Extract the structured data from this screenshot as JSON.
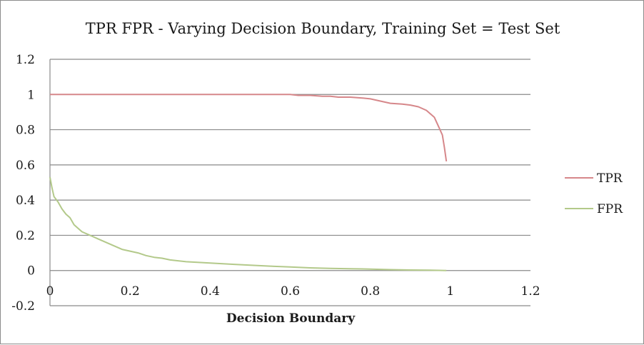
{
  "chart_data": {
    "type": "line",
    "title": "TPR FPR - Varying Decision Boundary,  Training Set = Test Set",
    "xlabel": "Decision Boundary",
    "ylabel": "",
    "xlim": [
      0,
      1.2
    ],
    "ylim": [
      -0.2,
      1.2
    ],
    "x_ticks": [
      "0",
      "0.2",
      "0.4",
      "0.6",
      "0.8",
      "1",
      "1.2"
    ],
    "y_ticks": [
      "1.2",
      "1",
      "0.8",
      "0.6",
      "0.4",
      "0.2",
      "0",
      "-0.2"
    ],
    "grid": "horizontal",
    "legend_position": "right",
    "series": [
      {
        "name": "TPR",
        "color": "#d6878a",
        "points": [
          [
            0,
            1
          ],
          [
            0.1,
            1
          ],
          [
            0.2,
            1
          ],
          [
            0.3,
            1
          ],
          [
            0.4,
            1
          ],
          [
            0.5,
            1
          ],
          [
            0.6,
            1
          ],
          [
            0.62,
            0.995
          ],
          [
            0.65,
            0.995
          ],
          [
            0.68,
            0.99
          ],
          [
            0.7,
            0.99
          ],
          [
            0.72,
            0.985
          ],
          [
            0.75,
            0.985
          ],
          [
            0.78,
            0.98
          ],
          [
            0.8,
            0.975
          ],
          [
            0.82,
            0.965
          ],
          [
            0.83,
            0.96
          ],
          [
            0.85,
            0.95
          ],
          [
            0.88,
            0.945
          ],
          [
            0.9,
            0.94
          ],
          [
            0.92,
            0.93
          ],
          [
            0.93,
            0.92
          ],
          [
            0.94,
            0.91
          ],
          [
            0.95,
            0.89
          ],
          [
            0.96,
            0.87
          ],
          [
            0.97,
            0.82
          ],
          [
            0.98,
            0.77
          ],
          [
            0.985,
            0.7
          ],
          [
            0.99,
            0.62
          ]
        ]
      },
      {
        "name": "FPR",
        "color": "#b3c98a",
        "points": [
          [
            0,
            0.53
          ],
          [
            0.005,
            0.47
          ],
          [
            0.01,
            0.42
          ],
          [
            0.02,
            0.39
          ],
          [
            0.03,
            0.35
          ],
          [
            0.04,
            0.32
          ],
          [
            0.05,
            0.3
          ],
          [
            0.06,
            0.26
          ],
          [
            0.07,
            0.24
          ],
          [
            0.08,
            0.22
          ],
          [
            0.1,
            0.2
          ],
          [
            0.12,
            0.18
          ],
          [
            0.14,
            0.16
          ],
          [
            0.16,
            0.14
          ],
          [
            0.18,
            0.12
          ],
          [
            0.2,
            0.11
          ],
          [
            0.22,
            0.1
          ],
          [
            0.24,
            0.085
          ],
          [
            0.26,
            0.075
          ],
          [
            0.28,
            0.07
          ],
          [
            0.3,
            0.06
          ],
          [
            0.34,
            0.05
          ],
          [
            0.38,
            0.045
          ],
          [
            0.42,
            0.04
          ],
          [
            0.46,
            0.035
          ],
          [
            0.5,
            0.03
          ],
          [
            0.55,
            0.025
          ],
          [
            0.6,
            0.02
          ],
          [
            0.65,
            0.015
          ],
          [
            0.7,
            0.012
          ],
          [
            0.75,
            0.01
          ],
          [
            0.8,
            0.008
          ],
          [
            0.85,
            0.005
          ],
          [
            0.9,
            0.003
          ],
          [
            0.95,
            0.002
          ],
          [
            0.99,
            0
          ]
        ]
      }
    ]
  }
}
